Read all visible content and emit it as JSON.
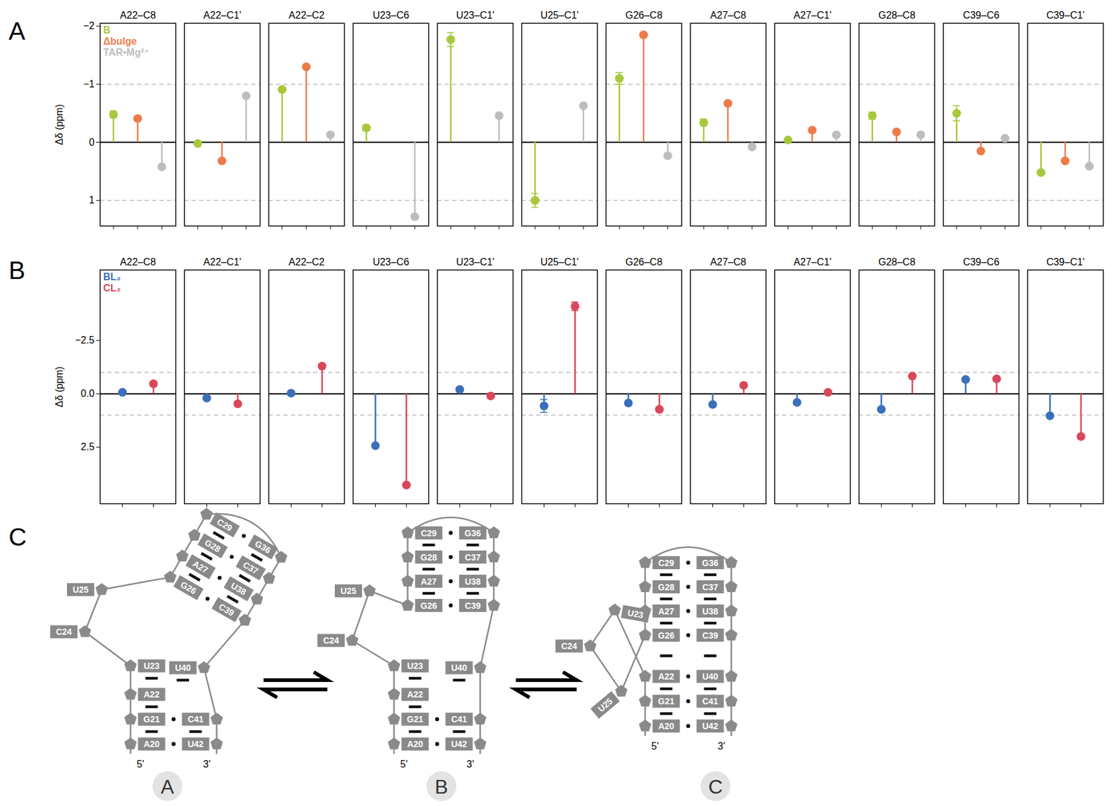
{
  "chart_data": [
    {
      "type": "lollipop",
      "title": "A",
      "categories": [
        "A22–C8",
        "A22–C1'",
        "A22–C2",
        "U23–C6",
        "U23–C1'",
        "U25–C1'",
        "G26–C8",
        "A27–C8",
        "A27–C1'",
        "G28–C8",
        "C39–C6",
        "C39–C1'"
      ],
      "ylabel": "Δδ (ppm)",
      "ylim": [
        1.44,
        -2.05
      ],
      "yticks": [
        -2,
        -1,
        0,
        1
      ],
      "baseline": 0,
      "dashed_lines": [
        -1,
        1
      ],
      "tick_labels": "y",
      "legend": "top-left",
      "series": [
        {
          "name": "B",
          "color": "#a8c83c",
          "values": [
            -0.48,
            0.02,
            -0.91,
            -0.25,
            -1.77,
            1.0,
            -1.1,
            -0.34,
            -0.04,
            -0.46,
            -0.5,
            0.52
          ],
          "errors": [
            0.06,
            null,
            null,
            0.05,
            0.12,
            0.12,
            0.1,
            0.06,
            null,
            0.06,
            0.13,
            null
          ]
        },
        {
          "name": "Δbulge",
          "color": "#ee7a48",
          "values": [
            -0.41,
            0.32,
            -1.3,
            null,
            null,
            null,
            -1.85,
            -0.67,
            -0.21,
            -0.18,
            0.15,
            0.32
          ]
        },
        {
          "name": "TAR•Mg²⁺",
          "color": "#bdbdbd",
          "values": [
            0.42,
            -0.8,
            -0.13,
            1.28,
            -0.46,
            -0.63,
            0.23,
            0.08,
            -0.13,
            -0.13,
            -0.07,
            0.41
          ]
        }
      ]
    },
    {
      "type": "lollipop",
      "title": "B",
      "categories": [
        "A22–C8",
        "A22–C1'",
        "A22–C2",
        "U23–C6",
        "U23–C1'",
        "U25–C1'",
        "G26–C8",
        "A27–C8",
        "A27–C1'",
        "G28–C8",
        "C39–C6",
        "C39–C1'"
      ],
      "ylabel": "Δδ (ppm)",
      "ylim": [
        5.15,
        -5.8
      ],
      "yticks": [
        -2.5,
        {
          "value": 0,
          "label": "0.0"
        },
        2.5
      ],
      "baseline": 0,
      "dashed_lines": [
        -1,
        1
      ],
      "tick_labels": "y",
      "legend": "top-left",
      "series": [
        {
          "name": "BL₂",
          "color": "#3a6fba",
          "values": [
            -0.07,
            0.2,
            -0.03,
            2.43,
            -0.2,
            0.57,
            0.43,
            0.5,
            0.4,
            0.73,
            -0.67,
            1.03
          ],
          "errors": [
            null,
            null,
            null,
            null,
            null,
            0.3,
            null,
            null,
            null,
            null,
            null,
            null
          ]
        },
        {
          "name": "CL₂",
          "color": "#d9485a",
          "values": [
            -0.47,
            0.47,
            -1.3,
            4.27,
            0.1,
            -4.1,
            0.73,
            -0.4,
            -0.07,
            -0.83,
            -0.7,
            2.0
          ],
          "errors": [
            null,
            null,
            null,
            null,
            null,
            0.2,
            null,
            null,
            null,
            null,
            null,
            null
          ]
        }
      ]
    }
  ],
  "diagram": {
    "title": "C",
    "structures": [
      {
        "label": "A",
        "lower_pairs": [
          [
            "A20",
            "U42"
          ],
          [
            "G21",
            "C41"
          ]
        ],
        "upper_pairs": [
          [
            "G26",
            "C39"
          ],
          [
            "A27",
            "U38"
          ],
          [
            "G28",
            "C37"
          ],
          [
            "C29",
            "G36"
          ]
        ],
        "unpaired": [
          "A22",
          "U23",
          "C24",
          "U25",
          "U40"
        ],
        "ends": [
          "5'",
          "3'"
        ]
      },
      {
        "label": "B",
        "lower_pairs": [
          [
            "A20",
            "U42"
          ],
          [
            "G21",
            "C41"
          ]
        ],
        "upper_pairs": [
          [
            "G26",
            "C39"
          ],
          [
            "A27",
            "U38"
          ],
          [
            "G28",
            "C37"
          ],
          [
            "C29",
            "G36"
          ]
        ],
        "unpaired": [
          "A22",
          "U23",
          "C24",
          "U25",
          "U40"
        ],
        "ends": [
          "5'",
          "3'"
        ]
      },
      {
        "label": "C",
        "lower_pairs": [
          [
            "A20",
            "U42"
          ],
          [
            "G21",
            "C41"
          ],
          [
            "A22",
            "U40"
          ]
        ],
        "upper_pairs": [
          [
            "G26",
            "C39"
          ],
          [
            "A27",
            "U38"
          ],
          [
            "G28",
            "C37"
          ],
          [
            "C29",
            "G36"
          ]
        ],
        "unpaired": [
          "U23",
          "C24",
          "U25"
        ],
        "ends": [
          "5'",
          "3'"
        ]
      }
    ]
  }
}
